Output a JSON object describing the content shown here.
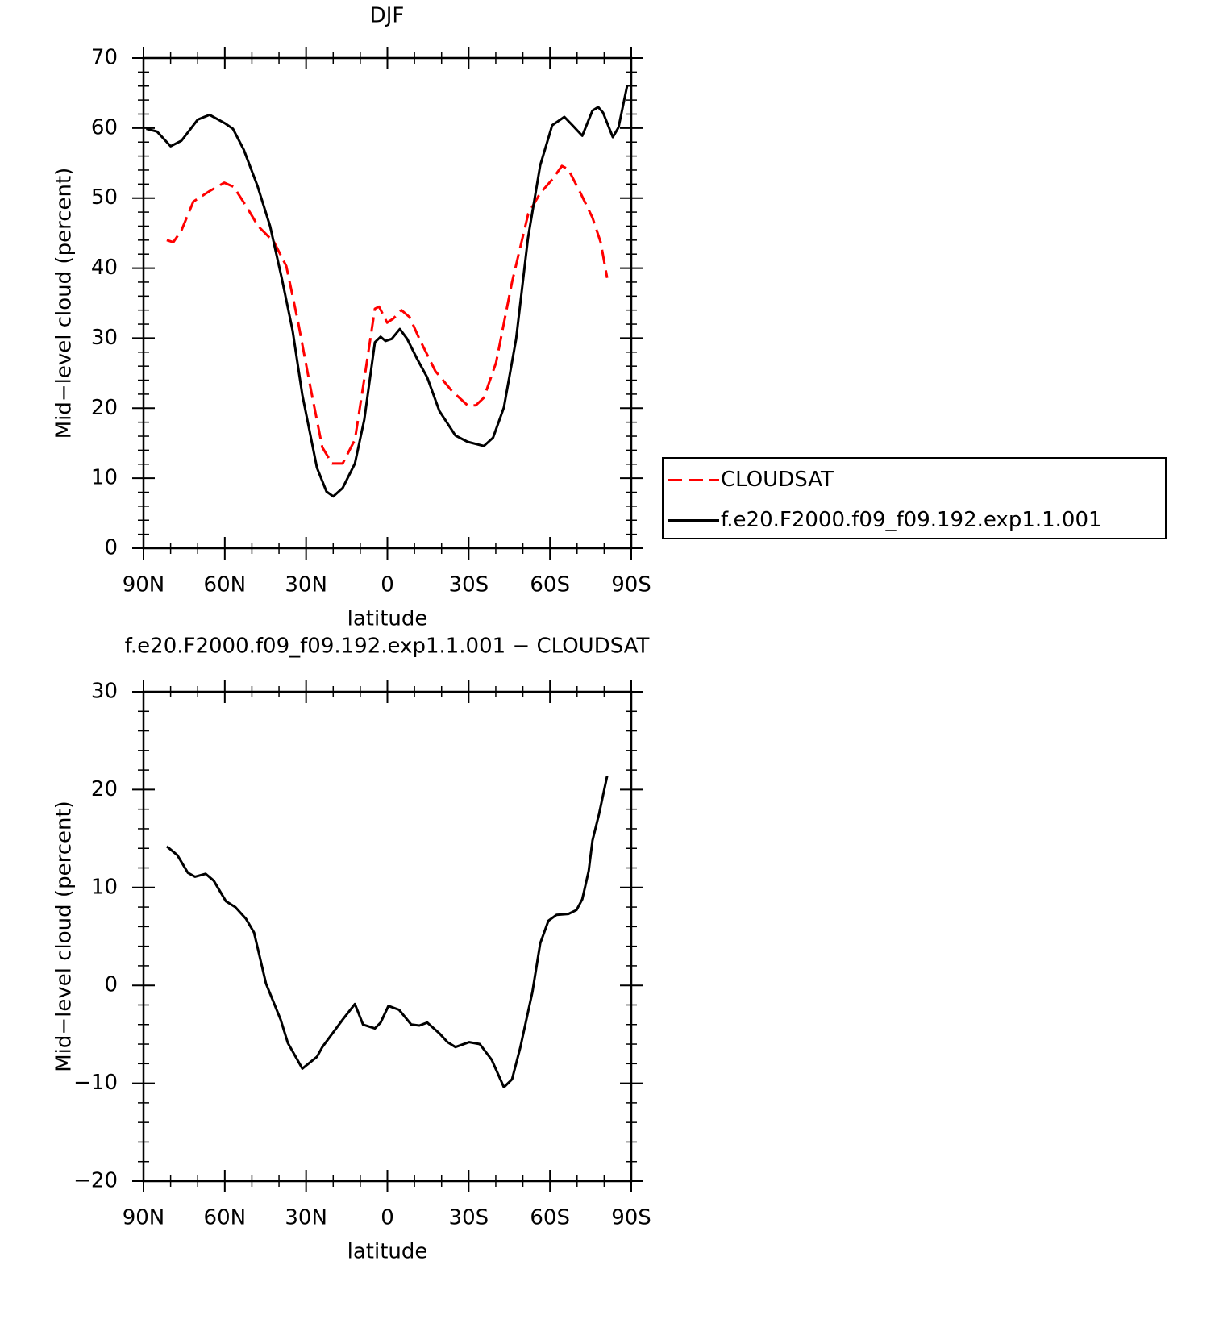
{
  "chart_data": [
    {
      "type": "line",
      "title": "DJF",
      "xlabel": "latitude",
      "ylabel": "Mid−level cloud (percent)",
      "xlim": [
        90,
        -90
      ],
      "xticks": [
        {
          "value": 90,
          "label": "90N"
        },
        {
          "value": 60,
          "label": "60N"
        },
        {
          "value": 30,
          "label": "30N"
        },
        0,
        {
          "value": -30,
          "label": "30S"
        },
        {
          "value": -60,
          "label": "60S"
        },
        {
          "value": -90,
          "label": "90S"
        }
      ],
      "ylim": [
        0,
        70
      ],
      "yticks": [
        0,
        10,
        20,
        30,
        40,
        50,
        60,
        70
      ],
      "legend": "right",
      "series": [
        {
          "name": "CLOUDSAT",
          "color": "#ff0000",
          "dash": "dashed",
          "x": [
            81.4,
            79,
            76,
            71.6,
            65.6,
            60.2,
            56.7,
            52.2,
            47.7,
            41.8,
            37.3,
            32.9,
            28.4,
            24,
            20.4,
            16.5,
            12,
            8.5,
            4.6,
            3.1,
            0.1,
            -2.2,
            -5.2,
            -8.2,
            -11.8,
            -17.7,
            -23.7,
            -29.6,
            -32.6,
            -35.6,
            -40.1,
            -46,
            -52,
            -56.4,
            -60.9,
            -64.4,
            -66.8,
            -71.3,
            -75.7,
            -78.7,
            -81.1
          ],
          "values": [
            44,
            43.7,
            45.4,
            49.5,
            51,
            52.2,
            51.6,
            48.9,
            46,
            43.7,
            40.3,
            32.2,
            23,
            14.4,
            12.1,
            12.1,
            15.5,
            24.2,
            34.2,
            34.5,
            32.2,
            32.8,
            34,
            33,
            29.9,
            25.3,
            22.5,
            20.4,
            20.4,
            21.5,
            26.5,
            38,
            47.8,
            50.7,
            52.7,
            54.6,
            54.1,
            50.7,
            47.2,
            43.7,
            38.6
          ]
        },
        {
          "name": "f.e20.F2000.f09_f09.192.exp1.1.001",
          "color": "#000000",
          "dash": "solid",
          "x": [
            89,
            85,
            80,
            76,
            70,
            65.6,
            60,
            57,
            53,
            48,
            43.3,
            39,
            35,
            31.4,
            26,
            22.5,
            20,
            16.5,
            12,
            8.5,
            4.6,
            2.5,
            0.7,
            -1.6,
            -4.6,
            -7.3,
            -10.9,
            -14.7,
            -19.2,
            -25.1,
            -29.6,
            -35.6,
            -39,
            -43,
            -47.5,
            -51.9,
            -56.4,
            -60.8,
            -65.3,
            -68.3,
            -71.9,
            -75.7,
            -77.8,
            -79.6,
            -83.2,
            -85.3,
            -88.5
          ],
          "values": [
            59.9,
            59.5,
            57.4,
            58.2,
            61.2,
            61.9,
            60.7,
            59.9,
            56.9,
            51.8,
            46,
            38.6,
            31.1,
            21.9,
            11.5,
            8.1,
            7.4,
            8.6,
            12.1,
            18.4,
            29.4,
            30.2,
            29.6,
            29.9,
            31.3,
            29.9,
            27.1,
            24.4,
            19.6,
            16.1,
            15.2,
            14.6,
            15.8,
            20.1,
            29.9,
            44.3,
            54.7,
            60.4,
            61.6,
            60.4,
            58.9,
            62.5,
            63,
            62.2,
            58.7,
            60.1,
            66.1
          ]
        }
      ]
    },
    {
      "type": "line",
      "title": "f.e20.F2000.f09_f09.192.exp1.1.001 − CLOUDSAT",
      "xlabel": "latitude",
      "ylabel": "Mid−level cloud (percent)",
      "xlim": [
        90,
        -90
      ],
      "xticks": [
        {
          "value": 90,
          "label": "90N"
        },
        {
          "value": 60,
          "label": "60N"
        },
        {
          "value": 30,
          "label": "30N"
        },
        0,
        {
          "value": -30,
          "label": "30S"
        },
        {
          "value": -60,
          "label": "60S"
        },
        {
          "value": -90,
          "label": "90S"
        }
      ],
      "ylim": [
        -20,
        30
      ],
      "yticks": [
        {
          "value": -20,
          "label": "−20"
        },
        {
          "value": -10,
          "label": "−10"
        },
        0,
        10,
        20,
        30
      ],
      "series": [
        {
          "color": "#000000",
          "dash": "solid",
          "x": [
            81.4,
            77.5,
            73.6,
            71,
            67.1,
            64.1,
            59.6,
            56.1,
            52.2,
            49.2,
            44.8,
            39.4,
            36.7,
            31.4,
            26,
            24,
            16.5,
            12,
            9,
            4.6,
            2.5,
            -0.4,
            -4.3,
            -8.8,
            -11.8,
            -14.7,
            -19.2,
            -22.2,
            -25.1,
            -30.2,
            -34.1,
            -38.5,
            -43,
            -46,
            -49,
            -53.5,
            -56.4,
            -59.4,
            -62.4,
            -66.8,
            -69.8,
            -71.9,
            -74.3,
            -75.7,
            -78.1,
            -81.1
          ],
          "values": [
            14.2,
            13.3,
            11.5,
            11.1,
            11.4,
            10.7,
            8.6,
            8,
            6.8,
            5.4,
            0.2,
            -3.5,
            -5.9,
            -8.5,
            -7.3,
            -6.3,
            -3.5,
            -1.9,
            -4,
            -4.4,
            -3.8,
            -2.1,
            -2.5,
            -4,
            -4.1,
            -3.8,
            -4.9,
            -5.8,
            -6.3,
            -5.8,
            -6,
            -7.6,
            -10.4,
            -9.6,
            -6.4,
            -0.7,
            4.3,
            6.6,
            7.2,
            7.3,
            7.7,
            8.8,
            11.7,
            14.8,
            17.5,
            21.4
          ]
        }
      ]
    }
  ]
}
